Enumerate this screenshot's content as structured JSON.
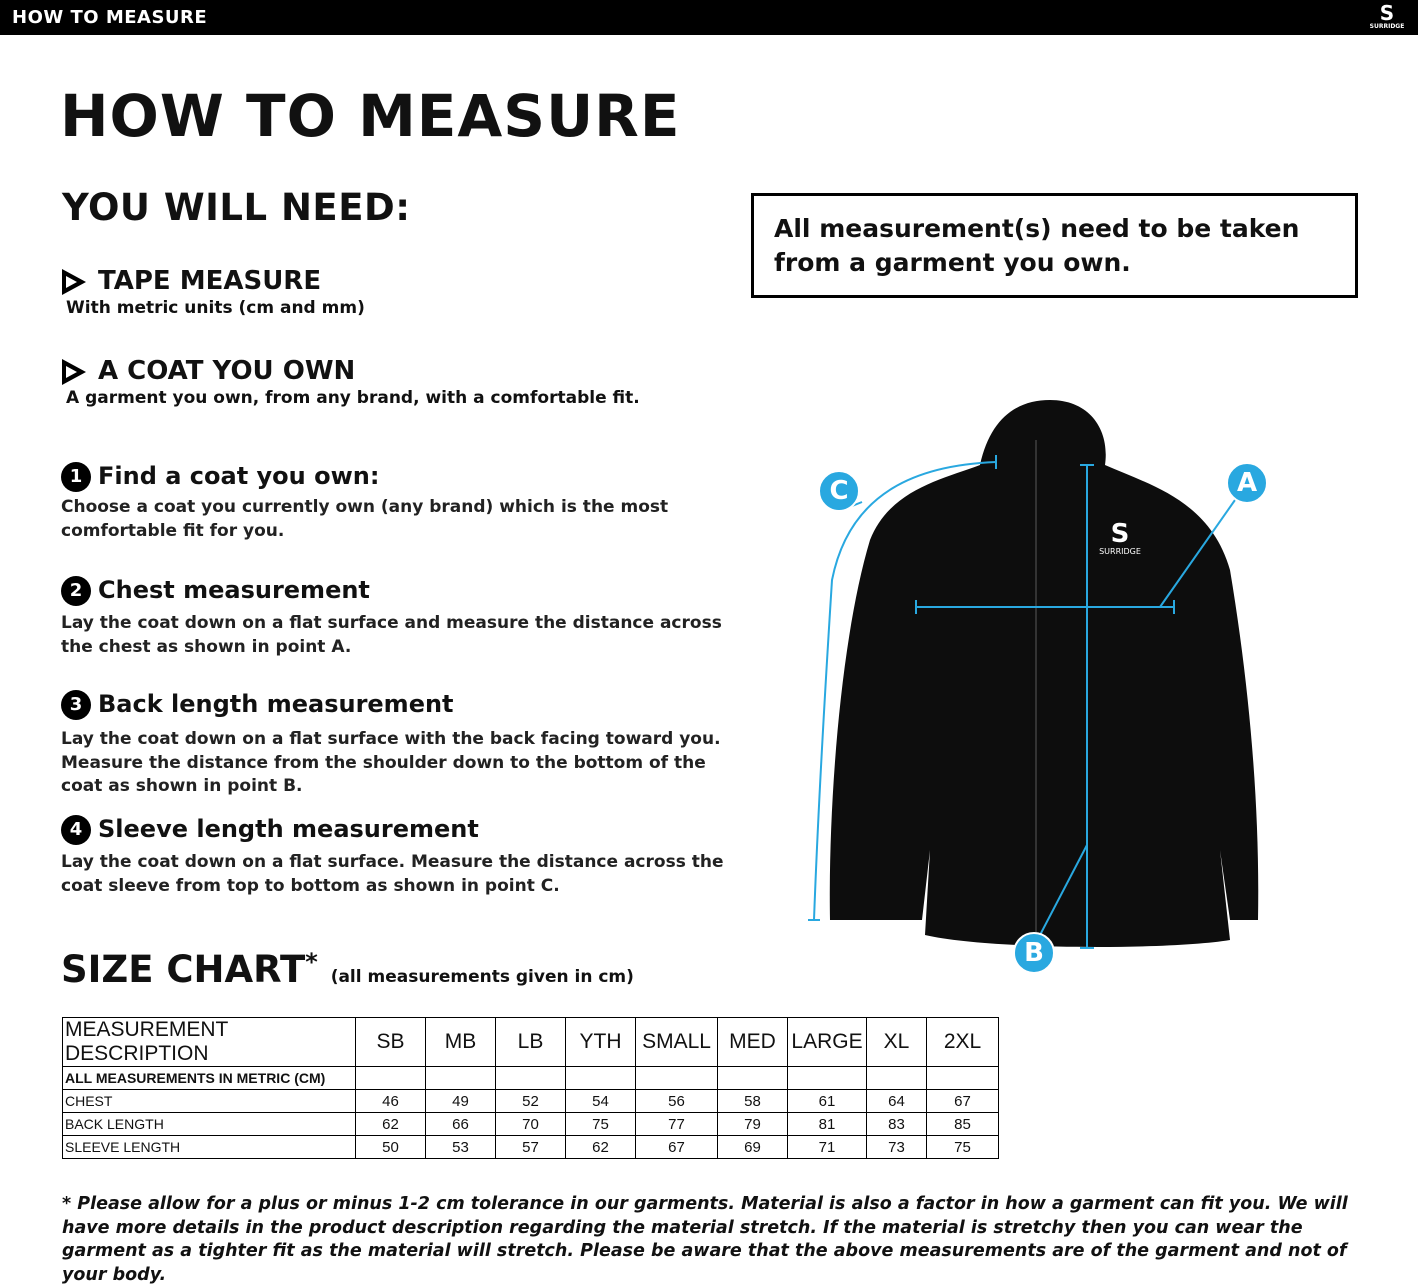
{
  "header": {
    "title": "HOW TO MEASURE",
    "logo_text": "SURRIDGE"
  },
  "page_title": "HOW TO MEASURE",
  "you_will_need": "YOU WILL NEED:",
  "needs": [
    {
      "title": "TAPE MEASURE",
      "desc": "With metric units (cm and mm)"
    },
    {
      "title": "A COAT YOU OWN",
      "desc": "A garment you own, from any brand, with a comfortable fit."
    }
  ],
  "steps": [
    {
      "num": "1",
      "title": "Find a coat you own:",
      "desc": "Choose a coat you currently own (any brand) which is the most comfortable fit for you."
    },
    {
      "num": "2",
      "title": "Chest measurement",
      "desc": "Lay the coat down on a flat surface and measure the distance across the chest as shown in point A."
    },
    {
      "num": "3",
      "title": "Back length measurement",
      "desc": "Lay the coat down on a flat surface with the back facing toward you. Measure the distance from the shoulder down to the bottom of the coat as shown in point B."
    },
    {
      "num": "4",
      "title": "Sleeve length measurement",
      "desc": "Lay the coat down on a flat surface. Measure the distance across the coat sleeve from top to bottom as shown in point C."
    }
  ],
  "note": "All measurement(s) need to be taken from a garment you own.",
  "diagram": {
    "labels": [
      "A",
      "B",
      "C"
    ],
    "garment_logo": "SURRIDGE",
    "accent": "#29a8e0"
  },
  "size_chart": {
    "title": "SIZE CHART",
    "asterisk": "*",
    "subtitle": "(all measurements given in cm)",
    "header": [
      "MEASUREMENT DESCRIPTION",
      "SB",
      "MB",
      "LB",
      "YTH",
      "SMALL",
      "MED",
      "LARGE",
      "XL",
      "2XL"
    ],
    "subheader": "ALL MEASUREMENTS IN METRIC (CM)",
    "rows": [
      {
        "label": "CHEST",
        "values": [
          "46",
          "49",
          "52",
          "54",
          "56",
          "58",
          "61",
          "64",
          "67"
        ]
      },
      {
        "label": "BACK LENGTH",
        "values": [
          "62",
          "66",
          "70",
          "75",
          "77",
          "79",
          "81",
          "83",
          "85"
        ]
      },
      {
        "label": "SLEEVE LENGTH",
        "values": [
          "50",
          "53",
          "57",
          "62",
          "67",
          "69",
          "71",
          "73",
          "75"
        ]
      }
    ]
  },
  "footnote": "* Please allow for a plus or minus 1-2 cm tolerance in our garments. Material is also a factor in how a garment can fit you. We will have more details in the product description regarding the material stretch.  If the material is stretchy then you can wear the garment as a tighter fit as the material will stretch.  Please be aware that the above measurements are of the garment and not of your body."
}
